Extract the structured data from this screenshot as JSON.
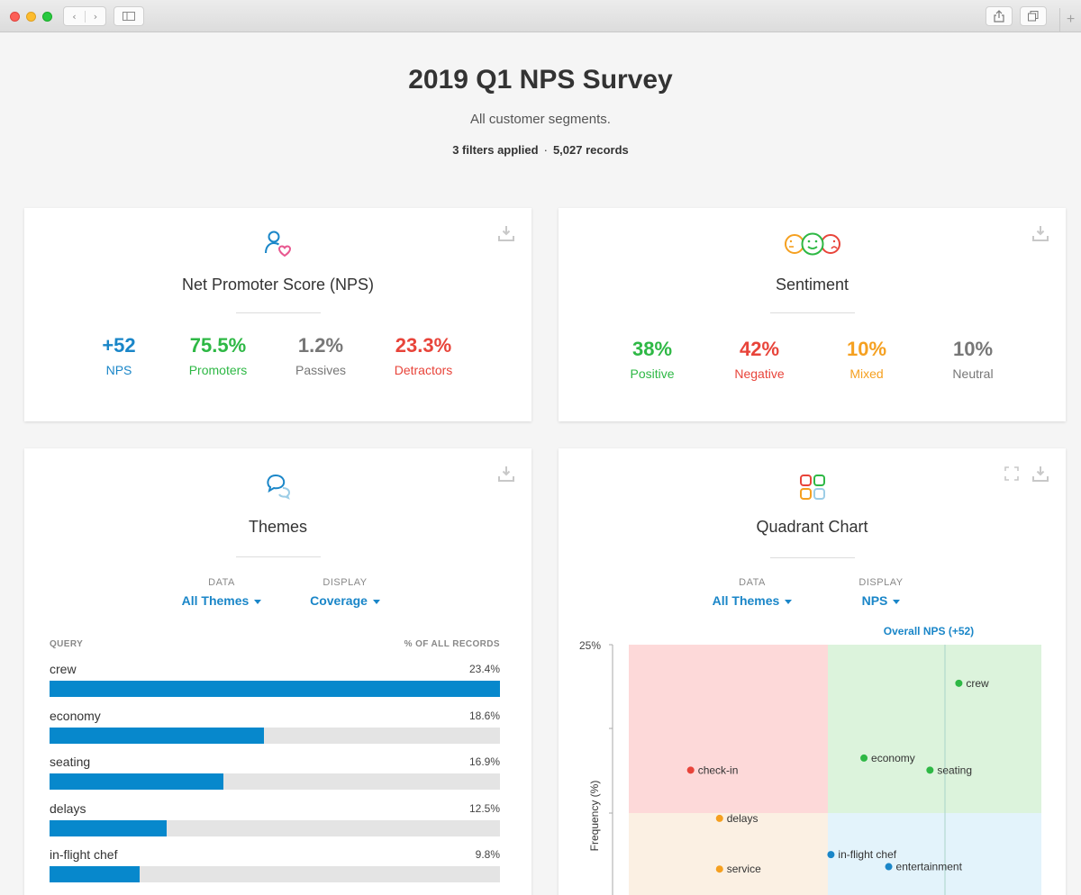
{
  "header": {
    "title": "2019 Q1 NPS Survey",
    "subtitle": "All customer segments.",
    "filters": "3 filters applied",
    "separator": "·",
    "records": "5,027 records"
  },
  "nps_card": {
    "title": "Net Promoter Score (NPS)",
    "stats": [
      {
        "value": "+52",
        "label": "NPS",
        "color": "#1a86c8"
      },
      {
        "value": "75.5%",
        "label": "Promoters",
        "color": "#2eb845"
      },
      {
        "value": "1.2%",
        "label": "Passives",
        "color": "#777777"
      },
      {
        "value": "23.3%",
        "label": "Detractors",
        "color": "#e8443a"
      }
    ]
  },
  "sentiment_card": {
    "title": "Sentiment",
    "stats": [
      {
        "value": "38%",
        "label": "Positive",
        "color": "#2eb845"
      },
      {
        "value": "42%",
        "label": "Negative",
        "color": "#e8443a"
      },
      {
        "value": "10%",
        "label": "Mixed",
        "color": "#f5a020"
      },
      {
        "value": "10%",
        "label": "Neutral",
        "color": "#777777"
      }
    ]
  },
  "themes_card": {
    "title": "Themes",
    "data_label": "DATA",
    "data_value": "All Themes",
    "display_label": "DISPLAY",
    "display_value": "Coverage",
    "col_query": "QUERY",
    "col_pct": "% OF ALL RECORDS",
    "rows": [
      {
        "label": "crew",
        "pct": "23.4%",
        "fraction": 1.0
      },
      {
        "label": "economy",
        "pct": "18.6%",
        "fraction": 0.475
      },
      {
        "label": "seating",
        "pct": "16.9%",
        "fraction": 0.385
      },
      {
        "label": "delays",
        "pct": "12.5%",
        "fraction": 0.26
      },
      {
        "label": "in-flight chef",
        "pct": "9.8%",
        "fraction": 0.2
      }
    ]
  },
  "quadrant_card": {
    "title": "Quadrant Chart",
    "data_label": "DATA",
    "data_value": "All Themes",
    "display_label": "DISPLAY",
    "display_value": "NPS"
  },
  "chart_data": {
    "type": "scatter",
    "reference_label": "Overall NPS (+52)",
    "y_tick_label": "25%",
    "ylabel": "Frequency (%)",
    "quadrant_colors": {
      "top_left": "#fdd9d9",
      "top_right": "#dcf3dc",
      "bottom_left": "#fbf0e3",
      "bottom_right": "#e3f3fb"
    },
    "points": [
      {
        "label": "crew",
        "x": 0.8,
        "y": 0.87,
        "color": "#2eb845"
      },
      {
        "label": "economy",
        "x": 0.57,
        "y": 0.56,
        "color": "#2eb845"
      },
      {
        "label": "seating",
        "x": 0.73,
        "y": 0.51,
        "color": "#2eb845"
      },
      {
        "label": "check-in",
        "x": 0.15,
        "y": 0.51,
        "color": "#e8443a"
      },
      {
        "label": "delays",
        "x": 0.22,
        "y": 0.31,
        "color": "#f5a020"
      },
      {
        "label": "service",
        "x": 0.22,
        "y": 0.1,
        "color": "#f5a020"
      },
      {
        "label": "in-flight chef",
        "x": 0.49,
        "y": 0.16,
        "color": "#1a86c8"
      },
      {
        "label": "entertainment",
        "x": 0.63,
        "y": 0.11,
        "color": "#1a86c8"
      }
    ]
  },
  "icons": {
    "person_heart": "user-heart-icon",
    "faces": "sentiment-faces-icon",
    "speech": "speech-bubbles-icon",
    "grid": "quadrant-grid-icon",
    "download": "download-icon",
    "expand": "expand-icon"
  }
}
